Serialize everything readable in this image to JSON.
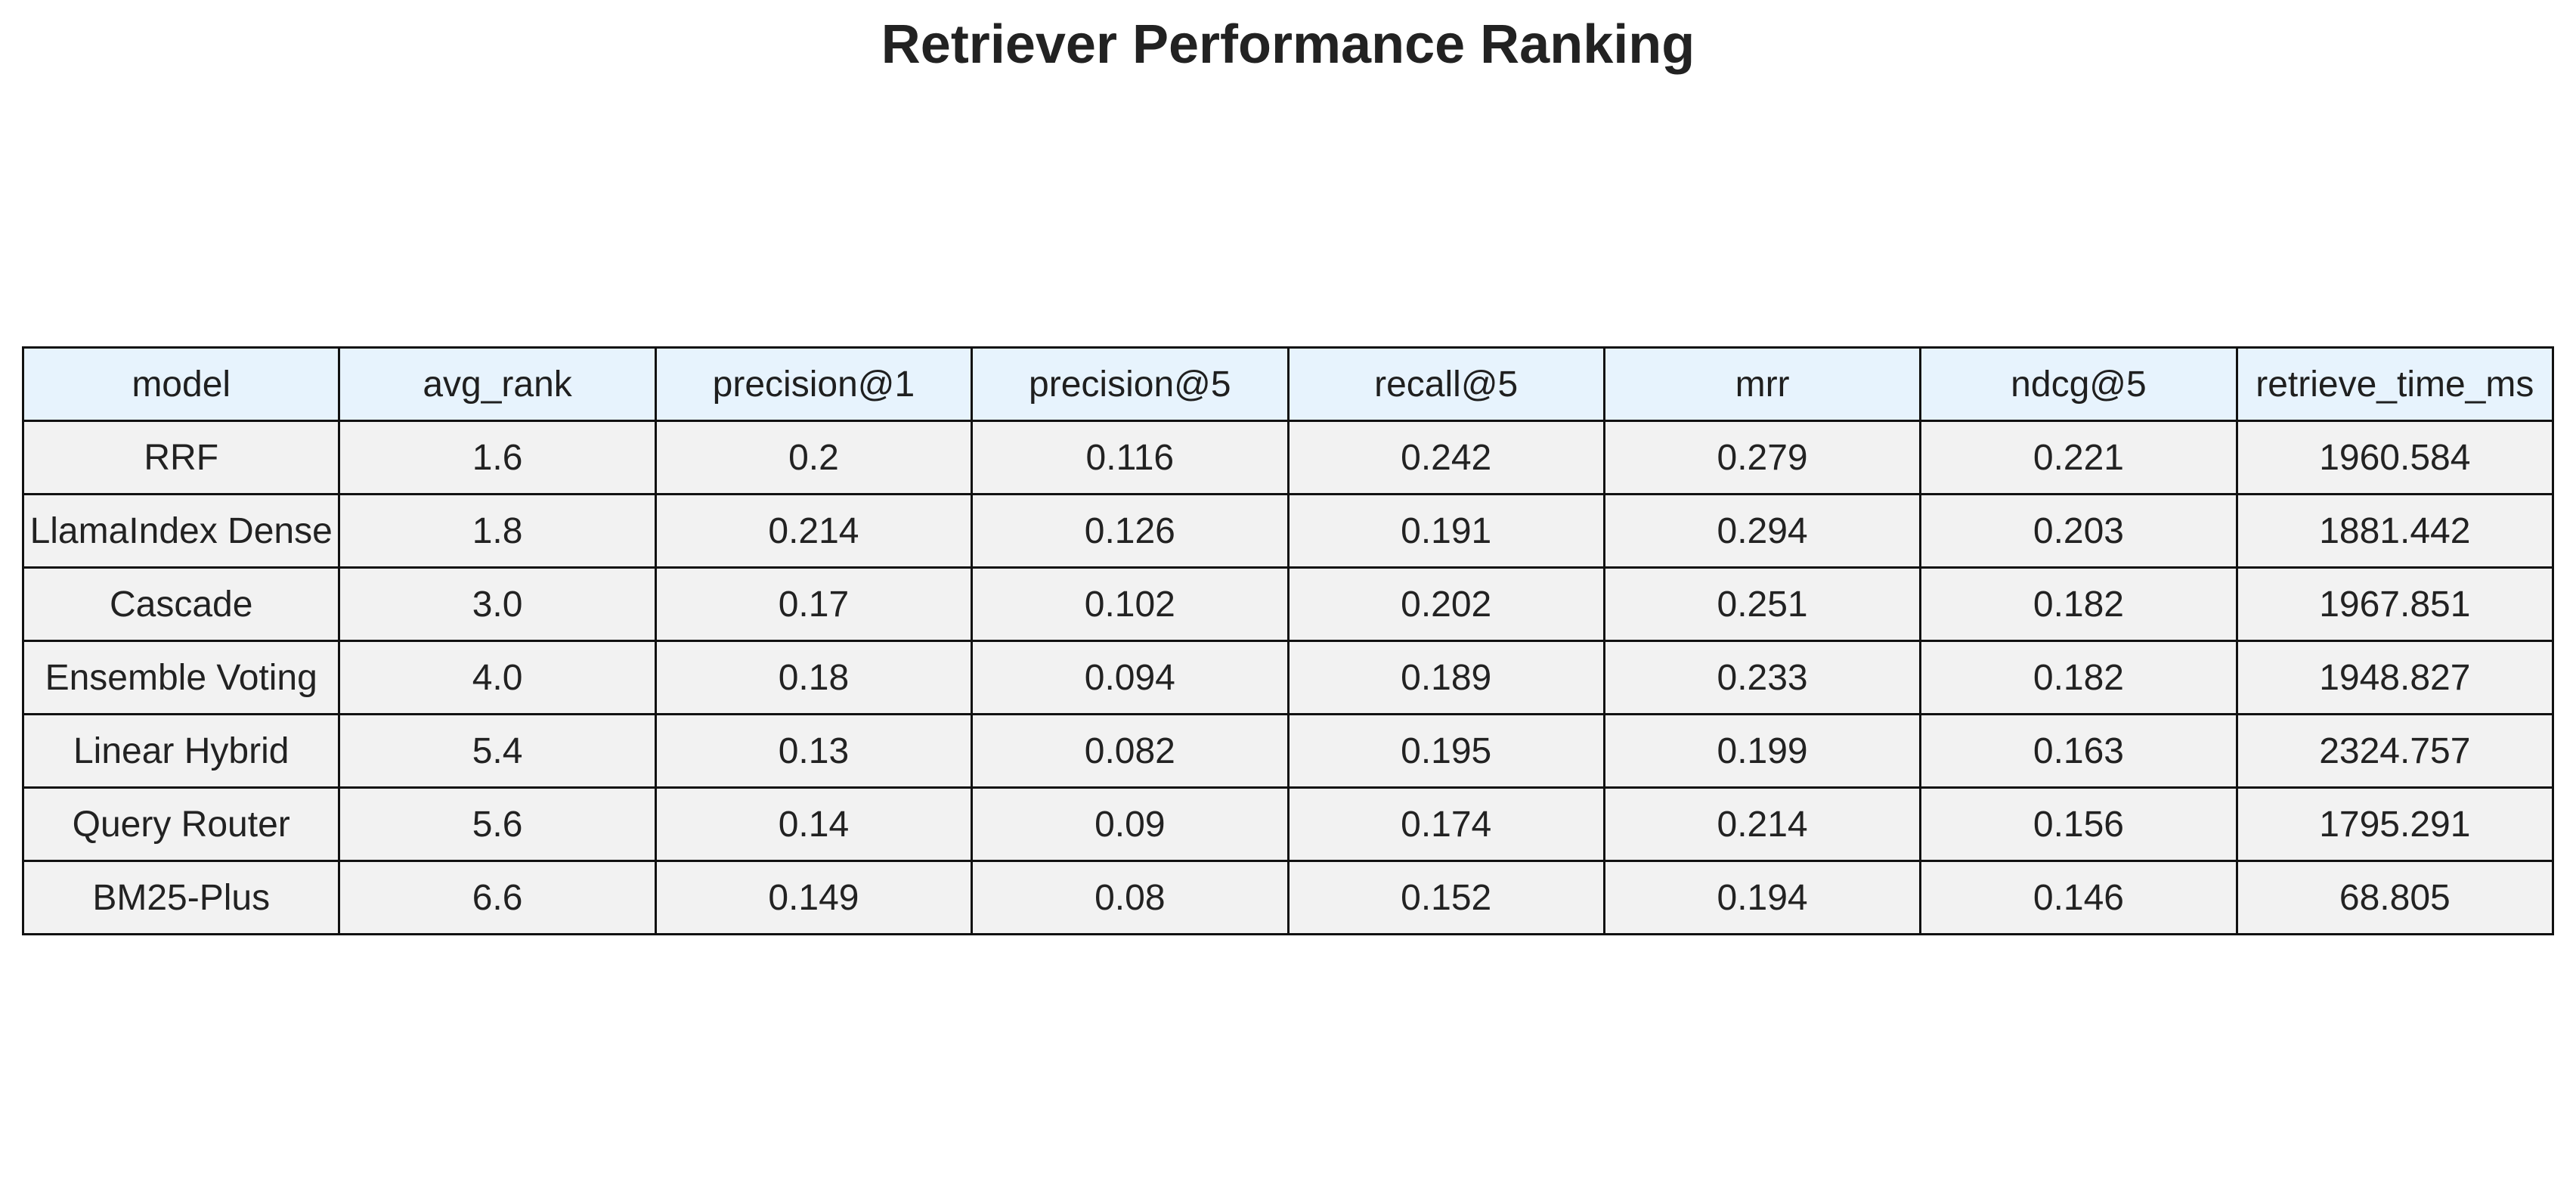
{
  "chart_data": {
    "type": "table",
    "title": "Retriever Performance Ranking",
    "columns": [
      "model",
      "avg_rank",
      "precision@1",
      "precision@5",
      "recall@5",
      "mrr",
      "ndcg@5",
      "retrieve_time_ms"
    ],
    "rows": [
      [
        "RRF",
        "1.6",
        "0.2",
        "0.116",
        "0.242",
        "0.279",
        "0.221",
        "1960.584"
      ],
      [
        "LlamaIndex Dense",
        "1.8",
        "0.214",
        "0.126",
        "0.191",
        "0.294",
        "0.203",
        "1881.442"
      ],
      [
        "Cascade",
        "3.0",
        "0.17",
        "0.102",
        "0.202",
        "0.251",
        "0.182",
        "1967.851"
      ],
      [
        "Ensemble Voting",
        "4.0",
        "0.18",
        "0.094",
        "0.189",
        "0.233",
        "0.182",
        "1948.827"
      ],
      [
        "Linear Hybrid",
        "5.4",
        "0.13",
        "0.082",
        "0.195",
        "0.199",
        "0.163",
        "2324.757"
      ],
      [
        "Query Router",
        "5.6",
        "0.14",
        "0.09",
        "0.174",
        "0.214",
        "0.156",
        "1795.291"
      ],
      [
        "BM25-Plus",
        "6.6",
        "0.149",
        "0.08",
        "0.152",
        "0.194",
        "0.146",
        "68.805"
      ]
    ],
    "header_color": "#e7f3fd",
    "cell_color": "#f2f2f2",
    "border_color": "#111111"
  }
}
